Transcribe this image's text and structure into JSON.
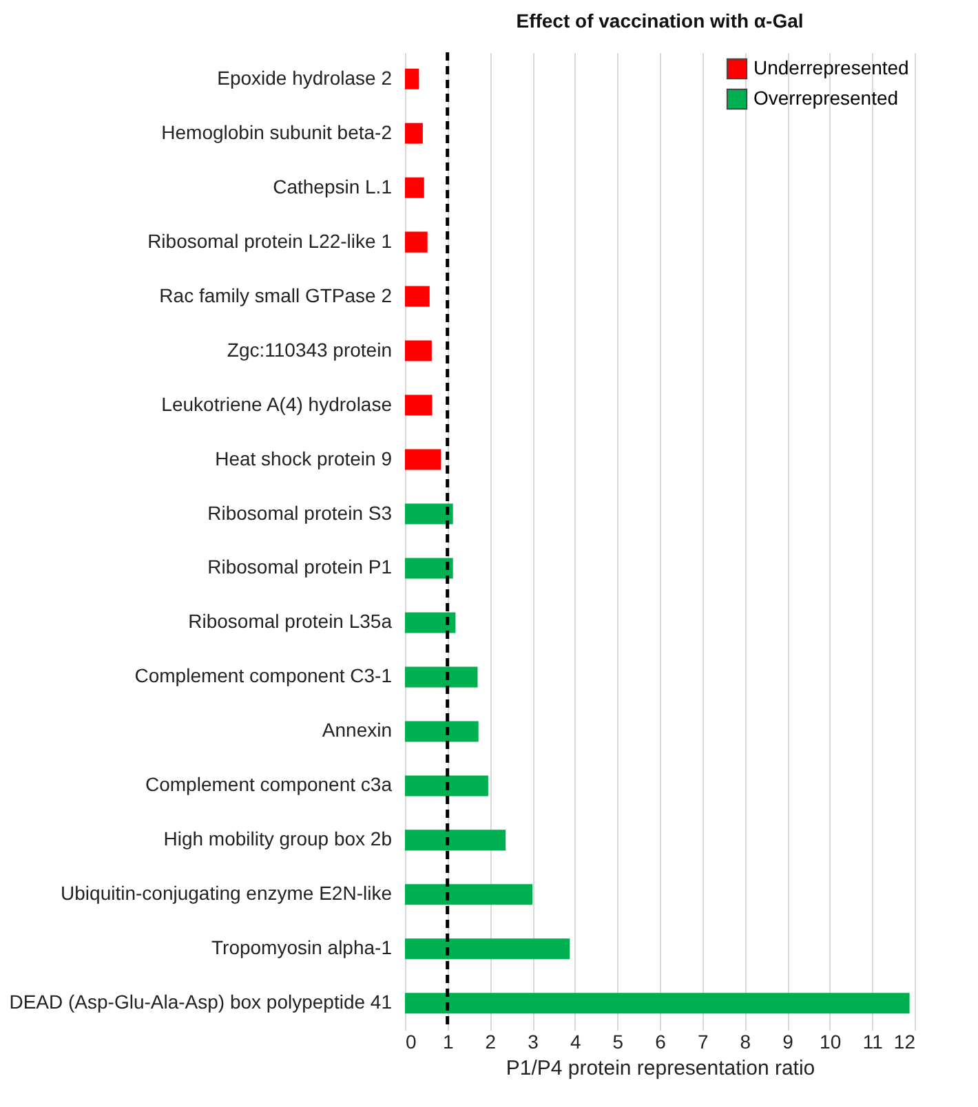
{
  "chart_data": {
    "type": "bar",
    "orientation": "horizontal",
    "title": "Effect of vaccination with α-Gal",
    "xlabel": "P1/P4 protein representation ratio",
    "categories": [
      "Epoxide hydrolase 2",
      "Hemoglobin subunit beta-2",
      "Cathepsin L.1",
      "Ribosomal protein L22-like 1",
      "Rac family small GTPase 2",
      "Zgc:110343 protein",
      "Leukotriene A(4) hydrolase",
      "Heat shock protein 9",
      "Ribosomal protein S3",
      "Ribosomal protein P1",
      "Ribosomal protein L35a",
      "Complement component C3-1",
      "Annexin",
      "Complement component c3a",
      "High mobility group box 2b",
      "Ubiquitin-conjugating enzyme E2N-like",
      "Tropomyosin alpha-1",
      "DEAD (Asp-Glu-Ala-Asp) box polypeptide 41"
    ],
    "series": [
      {
        "name": "Underrepresented",
        "color": "#ff0000",
        "values": [
          0.33,
          0.42,
          0.45,
          0.53,
          0.58,
          0.63,
          0.64,
          0.85,
          null,
          null,
          null,
          null,
          null,
          null,
          null,
          null,
          null,
          null
        ]
      },
      {
        "name": "Overrepresented",
        "color": "#00b050",
        "values": [
          null,
          null,
          null,
          null,
          null,
          null,
          null,
          null,
          1.13,
          1.13,
          1.19,
          1.71,
          1.73,
          1.96,
          2.37,
          3.0,
          3.88,
          11.88
        ]
      }
    ],
    "xlim": [
      0,
      12
    ],
    "xticks": [
      0,
      1,
      2,
      3,
      4,
      5,
      6,
      7,
      8,
      9,
      10,
      11,
      12
    ],
    "grid": "x",
    "legend": "top right",
    "ref_lines": [
      {
        "axis": "x",
        "value": 1,
        "line_style": "dashed",
        "color": "#000000"
      }
    ]
  }
}
